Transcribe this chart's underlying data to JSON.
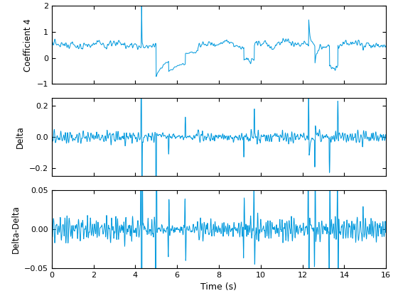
{
  "xlim": [
    0,
    16
  ],
  "ylim1": [
    -1,
    2
  ],
  "ylim2": [
    -0.25,
    0.25
  ],
  "ylim3": [
    -0.05,
    0.05
  ],
  "yticks1": [
    -1,
    0,
    1,
    2
  ],
  "yticks2": [
    -0.2,
    0,
    0.2
  ],
  "yticks3": [
    -0.05,
    0,
    0.05
  ],
  "xticks": [
    0,
    2,
    4,
    6,
    8,
    10,
    12,
    14,
    16
  ],
  "xlabel": "Time (s)",
  "ylabel1": "Coefficient 4",
  "ylabel2": "Delta",
  "ylabel3": "Delta-Delta",
  "line_color": "#0099DD",
  "bg_color": "#FFFFFF",
  "seed": 12345,
  "n_points": 1601,
  "duration": 16.0
}
